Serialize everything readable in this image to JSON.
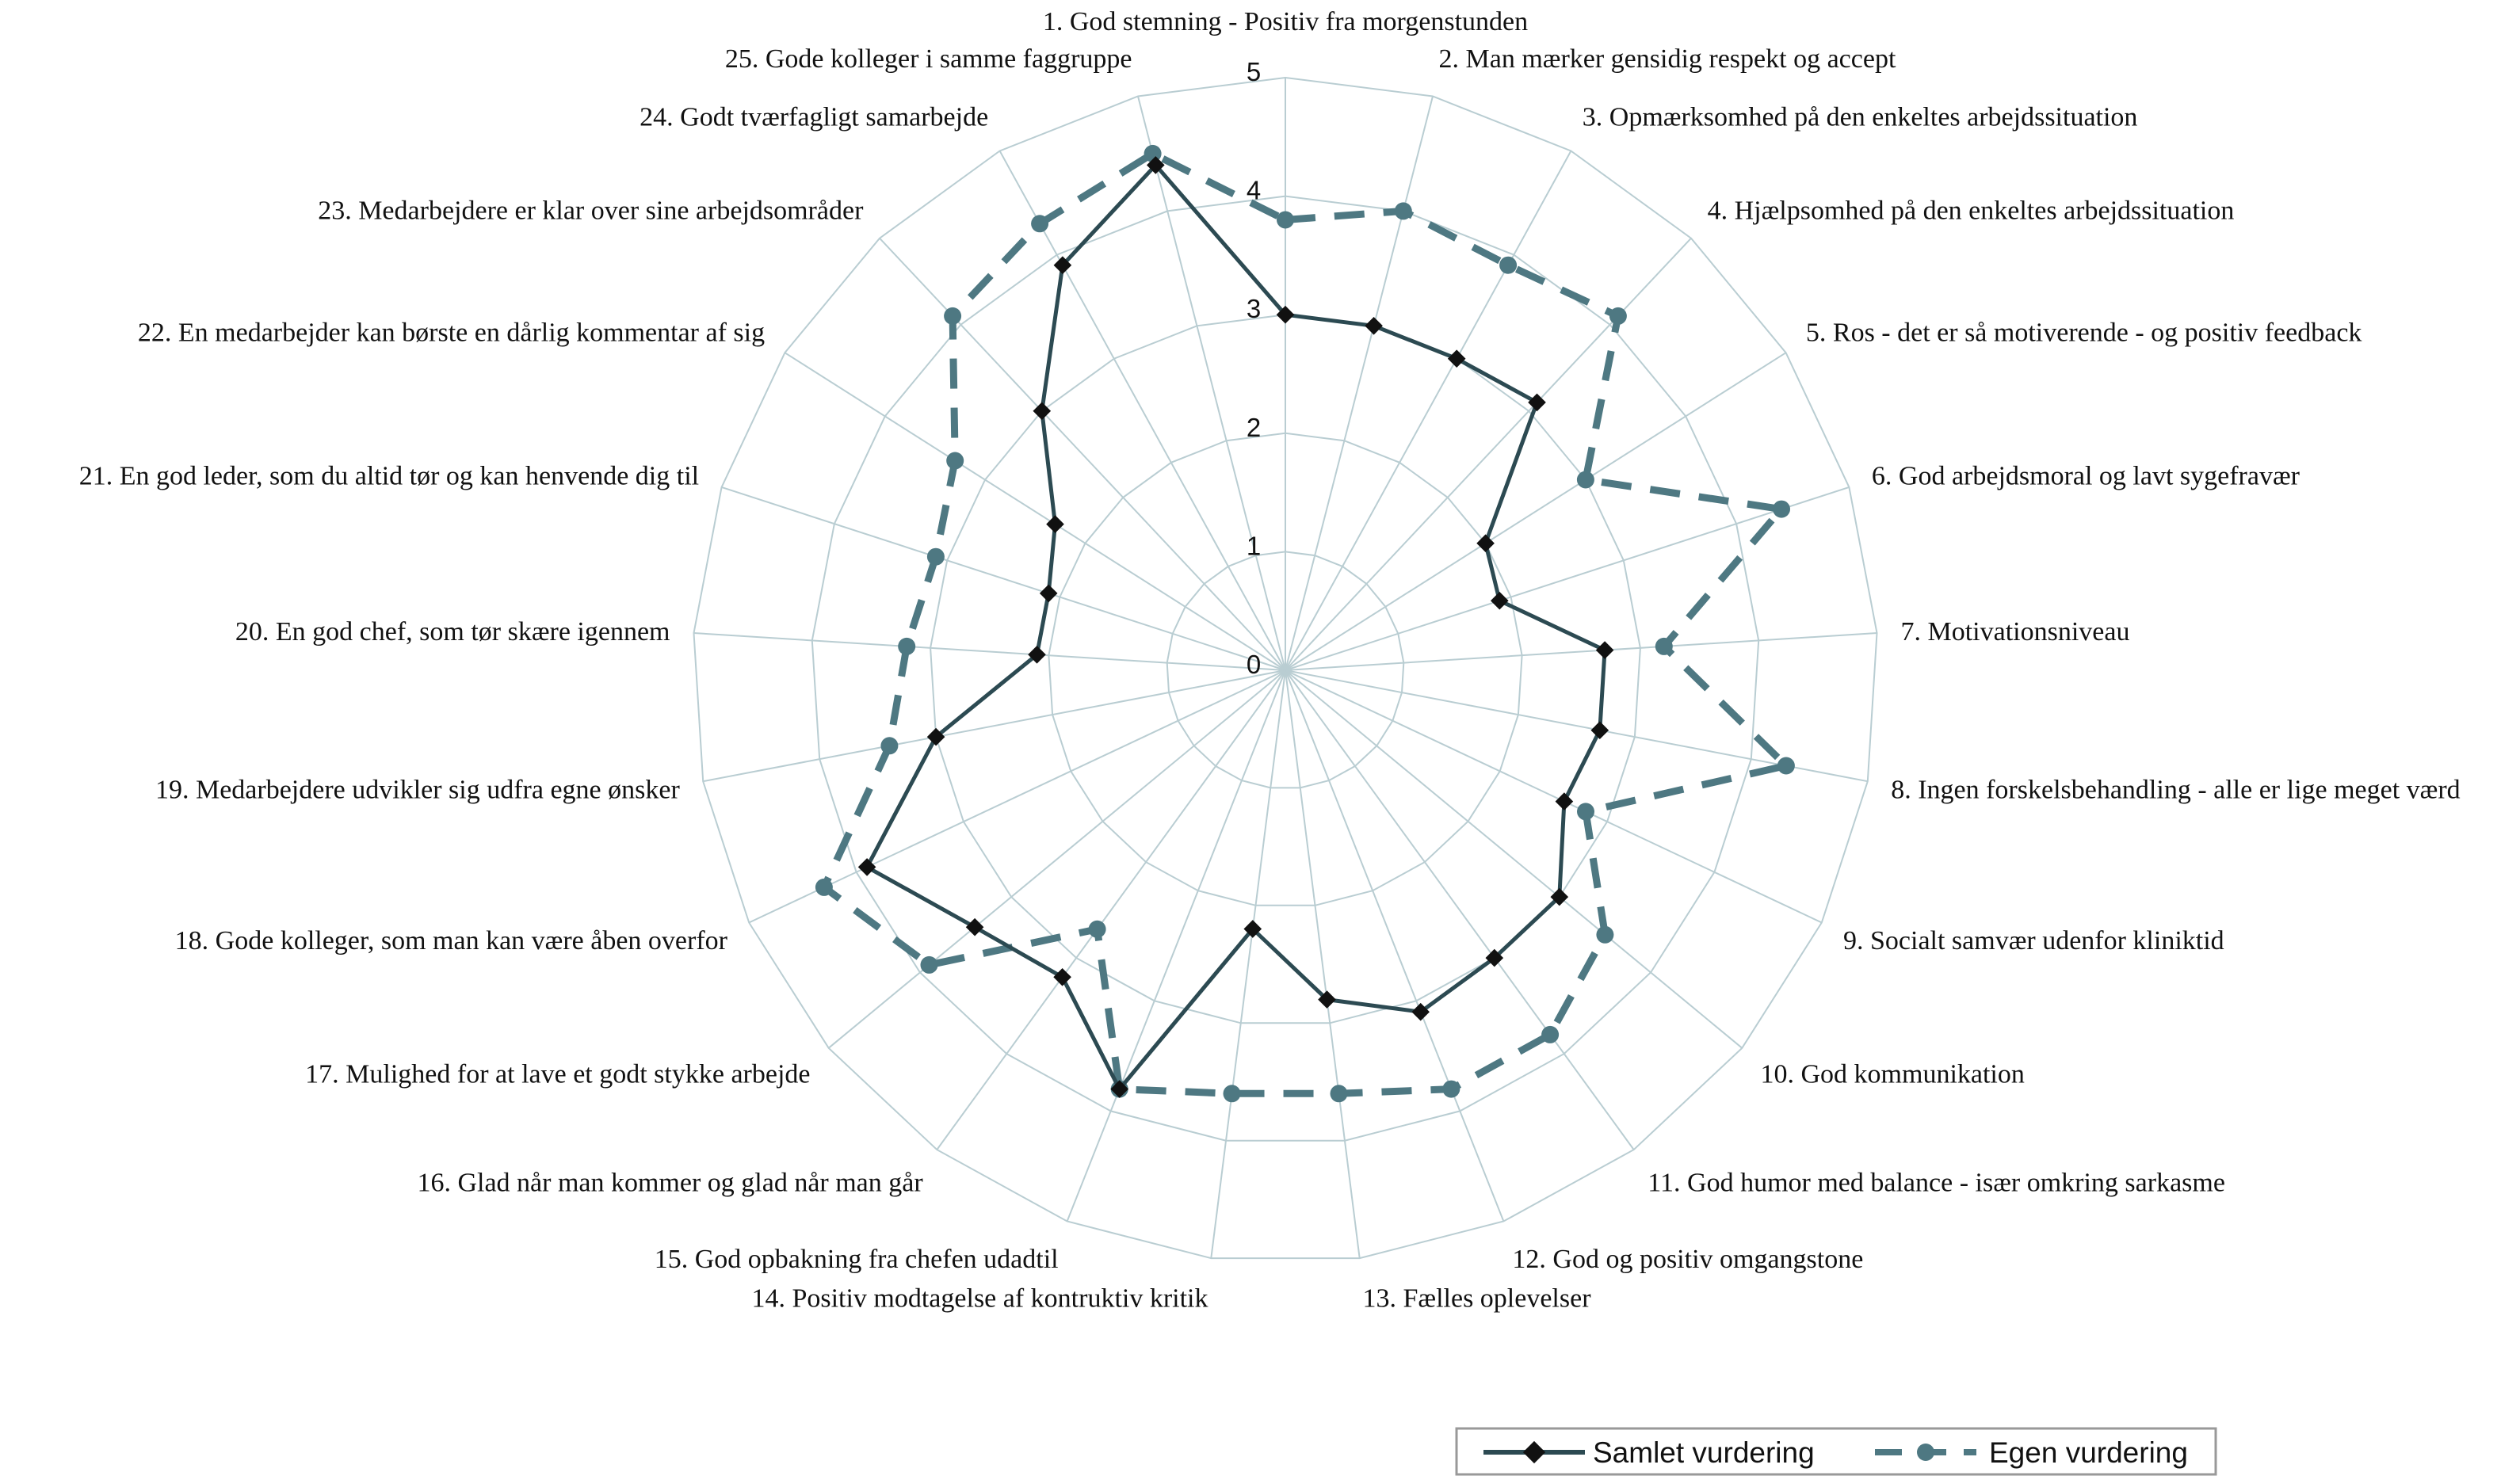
{
  "chart_data": {
    "type": "radar",
    "categories": [
      "1. God stemning - Positiv fra morgenstunden",
      "2. Man mærker gensidig respekt og accept",
      "3. Opmærksomhed på den enkeltes arbejdssituation",
      "4. Hjælpsomhed på den enkeltes arbejdssituation",
      "5. Ros - det er så motiverende - og positiv feedback",
      "6. God arbejdsmoral og lavt sygefravær",
      "7. Motivationsniveau",
      "8. Ingen forskelsbehandling - alle er lige meget værd",
      "9. Socialt samvær udenfor kliniktid",
      "10. God kommunikation",
      "11. God humor med balance - især omkring sarkasme",
      "12. God og positiv omgangstone",
      "13. Fælles oplevelser",
      "14. Positiv modtagelse af kontruktiv kritik",
      "15. God opbakning fra chefen udadtil",
      "16. Glad når man kommer og glad når man går",
      "17. Mulighed for at lave et godt stykke arbejde",
      "18. Gode kolleger, som man kan være åben overfor",
      "19. Medarbejdere udvikler sig udfra egne ønsker",
      "20. En god chef, som tør skære igennem",
      "21. En god leder, som du altid tør og kan henvende dig til",
      "22. En medarbejder kan børste en dårlig kommentar af sig",
      "23. Medarbejdere er klar over sine arbejdsområder",
      "24. Godt tværfagligt samarbejde",
      "25. Gode kolleger i samme faggruppe"
    ],
    "series": [
      {
        "name": "Samlet vurdering",
        "color": "#2c4a52",
        "style": "solid",
        "marker": "diamond",
        "values": [
          3.0,
          3.0,
          3.0,
          3.1,
          2.0,
          1.9,
          2.7,
          2.7,
          2.6,
          3.0,
          3.0,
          3.1,
          2.8,
          2.2,
          3.8,
          3.2,
          3.4,
          3.9,
          3.0,
          2.1,
          2.1,
          2.3,
          3.0,
          3.9,
          4.4
        ]
      },
      {
        "name": "Egen vurdering",
        "color": "#4e7882",
        "style": "dashed",
        "marker": "circle",
        "values": [
          3.8,
          4.0,
          3.9,
          4.1,
          3.0,
          4.4,
          3.2,
          4.3,
          2.8,
          3.5,
          3.8,
          3.8,
          3.6,
          3.6,
          3.8,
          2.7,
          3.9,
          4.3,
          3.4,
          3.2,
          3.1,
          3.3,
          4.1,
          4.3,
          4.5
        ]
      }
    ],
    "rlim": [
      0,
      5
    ],
    "ticks": [
      "0",
      "1",
      "2",
      "3",
      "4",
      "5"
    ],
    "gridlines": true,
    "legend_position": "bottom-right"
  }
}
